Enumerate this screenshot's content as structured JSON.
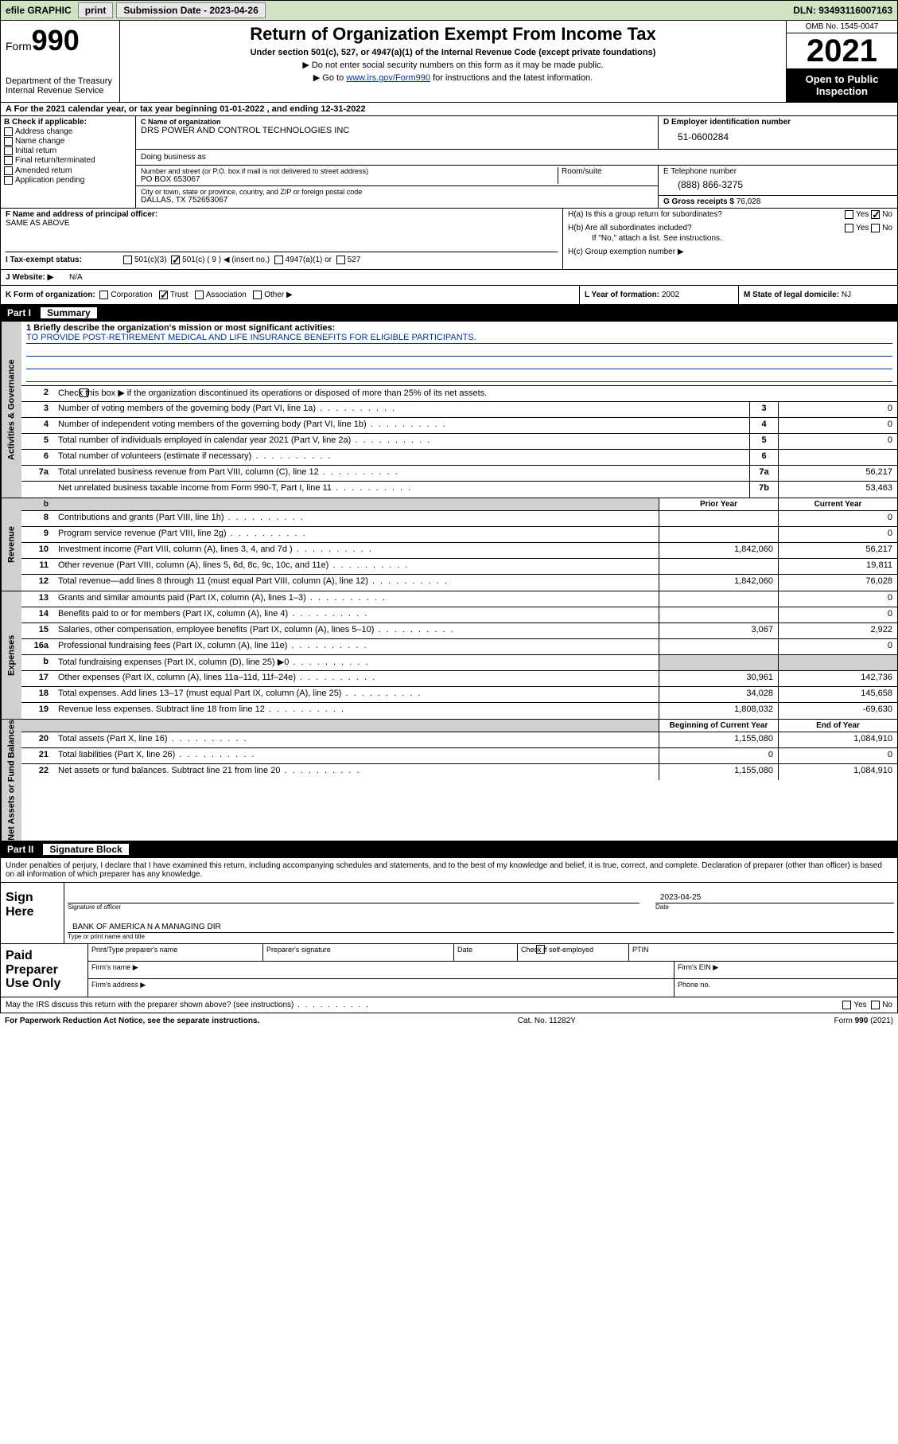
{
  "topbar": {
    "efile": "efile GRAPHIC",
    "print": "print",
    "submission_label": "Submission Date - 2023-04-26",
    "dln_label": "DLN: 93493116007163"
  },
  "header": {
    "form_label": "Form",
    "form_num": "990",
    "dept": "Department of the Treasury",
    "irs": "Internal Revenue Service",
    "title": "Return of Organization Exempt From Income Tax",
    "sub": "Under section 501(c), 527, or 4947(a)(1) of the Internal Revenue Code (except private foundations)",
    "sub2": "▶ Do not enter social security numbers on this form as it may be made public.",
    "sub3_pre": "▶ Go to ",
    "sub3_link": "www.irs.gov/Form990",
    "sub3_post": " for instructions and the latest information.",
    "omb": "OMB No. 1545-0047",
    "year": "2021",
    "open_pub1": "Open to Public",
    "open_pub2": "Inspection"
  },
  "row_a": "A For the 2021 calendar year, or tax year beginning 01-01-2022     , and ending 12-31-2022",
  "block_b": {
    "label": "B Check if applicable:",
    "opts": [
      "Address change",
      "Name change",
      "Initial return",
      "Final return/terminated",
      "Amended return",
      "Application pending"
    ]
  },
  "block_c": {
    "name_lbl": "C Name of organization",
    "name": "DRS POWER AND CONTROL TECHNOLOGIES INC",
    "dba_lbl": "Doing business as",
    "addr_lbl": "Number and street (or P.O. box if mail is not delivered to street address)",
    "room_lbl": "Room/suite",
    "addr": "PO BOX 653067",
    "city_lbl": "City or town, state or province, country, and ZIP or foreign postal code",
    "city": "DALLAS, TX   752653067"
  },
  "block_d": {
    "lbl": "D Employer identification number",
    "val": "51-0600284"
  },
  "block_e": {
    "lbl": "E Telephone number",
    "val": "(888) 866-3275"
  },
  "block_g": {
    "lbl": "G Gross receipts $",
    "val": "76,028"
  },
  "block_f": {
    "lbl": "F Name and address of principal officer:",
    "val": "SAME AS ABOVE"
  },
  "block_h": {
    "ha": "H(a)  Is this a group return for subordinates?",
    "hb": "H(b)  Are all subordinates included?",
    "hb_note": "If \"No,\" attach a list. See instructions.",
    "hc": "H(c)  Group exemption number ▶",
    "yes": "Yes",
    "no": "No"
  },
  "tax_status": {
    "lbl": "I   Tax-exempt status:",
    "opt1": "501(c)(3)",
    "opt2": "501(c) ( 9 ) ◀ (insert no.)",
    "opt3": "4947(a)(1) or",
    "opt4": "527"
  },
  "website": {
    "lbl": "J   Website: ▶",
    "val": "N/A"
  },
  "block_k": {
    "lbl": "K Form of organization:",
    "opts": [
      "Corporation",
      "Trust",
      "Association",
      "Other ▶"
    ],
    "checked_idx": 1
  },
  "block_l": {
    "lbl": "L Year of formation:",
    "val": "2002"
  },
  "block_m": {
    "lbl": "M State of legal domicile:",
    "val": "NJ"
  },
  "part1": {
    "num": "Part I",
    "title": "Summary",
    "side_gov": "Activities & Governance",
    "side_rev": "Revenue",
    "side_exp": "Expenses",
    "side_net": "Net Assets or Fund Balances",
    "l1_lbl": "1   Briefly describe the organization's mission or most significant activities:",
    "l1_val": "TO PROVIDE POST-RETIREMENT MEDICAL AND LIFE INSURANCE BENEFITS FOR ELIGIBLE PARTICIPANTS.",
    "l2": "Check this box ▶         if the organization discontinued its operations or disposed of more than 25% of its net assets.",
    "prior_hdr": "Prior Year",
    "curr_hdr": "Current Year",
    "beg_hdr": "Beginning of Current Year",
    "end_hdr": "End of Year",
    "rows_gov": [
      {
        "n": "3",
        "t": "Number of voting members of the governing body (Part VI, line 1a)",
        "box": "3",
        "v": "0"
      },
      {
        "n": "4",
        "t": "Number of independent voting members of the governing body (Part VI, line 1b)",
        "box": "4",
        "v": "0"
      },
      {
        "n": "5",
        "t": "Total number of individuals employed in calendar year 2021 (Part V, line 2a)",
        "box": "5",
        "v": "0"
      },
      {
        "n": "6",
        "t": "Total number of volunteers (estimate if necessary)",
        "box": "6",
        "v": ""
      },
      {
        "n": "7a",
        "t": "Total unrelated business revenue from Part VIII, column (C), line 12",
        "box": "7a",
        "v": "56,217"
      },
      {
        "n": "",
        "t": "Net unrelated business taxable income from Form 990-T, Part I, line 11",
        "box": "7b",
        "v": "53,463"
      }
    ],
    "rows_rev": [
      {
        "n": "8",
        "t": "Contributions and grants (Part VIII, line 1h)",
        "p": "",
        "c": "0"
      },
      {
        "n": "9",
        "t": "Program service revenue (Part VIII, line 2g)",
        "p": "",
        "c": "0"
      },
      {
        "n": "10",
        "t": "Investment income (Part VIII, column (A), lines 3, 4, and 7d )",
        "p": "1,842,060",
        "c": "56,217"
      },
      {
        "n": "11",
        "t": "Other revenue (Part VIII, column (A), lines 5, 6d, 8c, 9c, 10c, and 11e)",
        "p": "",
        "c": "19,811"
      },
      {
        "n": "12",
        "t": "Total revenue—add lines 8 through 11 (must equal Part VIII, column (A), line 12)",
        "p": "1,842,060",
        "c": "76,028"
      }
    ],
    "rows_exp": [
      {
        "n": "13",
        "t": "Grants and similar amounts paid (Part IX, column (A), lines 1–3)",
        "p": "",
        "c": "0"
      },
      {
        "n": "14",
        "t": "Benefits paid to or for members (Part IX, column (A), line 4)",
        "p": "",
        "c": "0"
      },
      {
        "n": "15",
        "t": "Salaries, other compensation, employee benefits (Part IX, column (A), lines 5–10)",
        "p": "3,067",
        "c": "2,922"
      },
      {
        "n": "16a",
        "t": "Professional fundraising fees (Part IX, column (A), line 11e)",
        "p": "",
        "c": "0"
      },
      {
        "n": "b",
        "t": "Total fundraising expenses (Part IX, column (D), line 25) ▶0",
        "p": "shaded",
        "c": "shaded"
      },
      {
        "n": "17",
        "t": "Other expenses (Part IX, column (A), lines 11a–11d, 11f–24e)",
        "p": "30,961",
        "c": "142,736"
      },
      {
        "n": "18",
        "t": "Total expenses. Add lines 13–17 (must equal Part IX, column (A), line 25)",
        "p": "34,028",
        "c": "145,658"
      },
      {
        "n": "19",
        "t": "Revenue less expenses. Subtract line 18 from line 12",
        "p": "1,808,032",
        "c": "-69,630"
      }
    ],
    "rows_net": [
      {
        "n": "20",
        "t": "Total assets (Part X, line 16)",
        "p": "1,155,080",
        "c": "1,084,910"
      },
      {
        "n": "21",
        "t": "Total liabilities (Part X, line 26)",
        "p": "0",
        "c": "0"
      },
      {
        "n": "22",
        "t": "Net assets or fund balances. Subtract line 21 from line 20",
        "p": "1,155,080",
        "c": "1,084,910"
      }
    ]
  },
  "part2": {
    "num": "Part II",
    "title": "Signature Block",
    "penalty": "Under penalties of perjury, I declare that I have examined this return, including accompanying schedules and statements, and to the best of my knowledge and belief, it is true, correct, and complete. Declaration of preparer (other than officer) is based on all information of which preparer has any knowledge.",
    "sign_here": "Sign Here",
    "sig_officer": "Signature of officer",
    "sig_date": "Date",
    "sig_date_val": "2023-04-25",
    "name_title": "BANK OF AMERICA N A  MANAGING DIR",
    "name_title_lbl": "Type or print name and title",
    "paid": "Paid Preparer Use Only",
    "prep_name": "Print/Type preparer's name",
    "prep_sig": "Preparer's signature",
    "prep_date": "Date",
    "check_if": "Check          if self-employed",
    "ptin": "PTIN",
    "firm_name": "Firm's name    ▶",
    "firm_ein": "Firm's EIN ▶",
    "firm_addr": "Firm's address ▶",
    "phone": "Phone no."
  },
  "footer": {
    "discuss": "May the IRS discuss this return with the preparer shown above? (see instructions)",
    "yes": "Yes",
    "no": "No",
    "paperwork": "For Paperwork Reduction Act Notice, see the separate instructions.",
    "cat": "Cat. No. 11282Y",
    "form": "Form 990 (2021)"
  }
}
